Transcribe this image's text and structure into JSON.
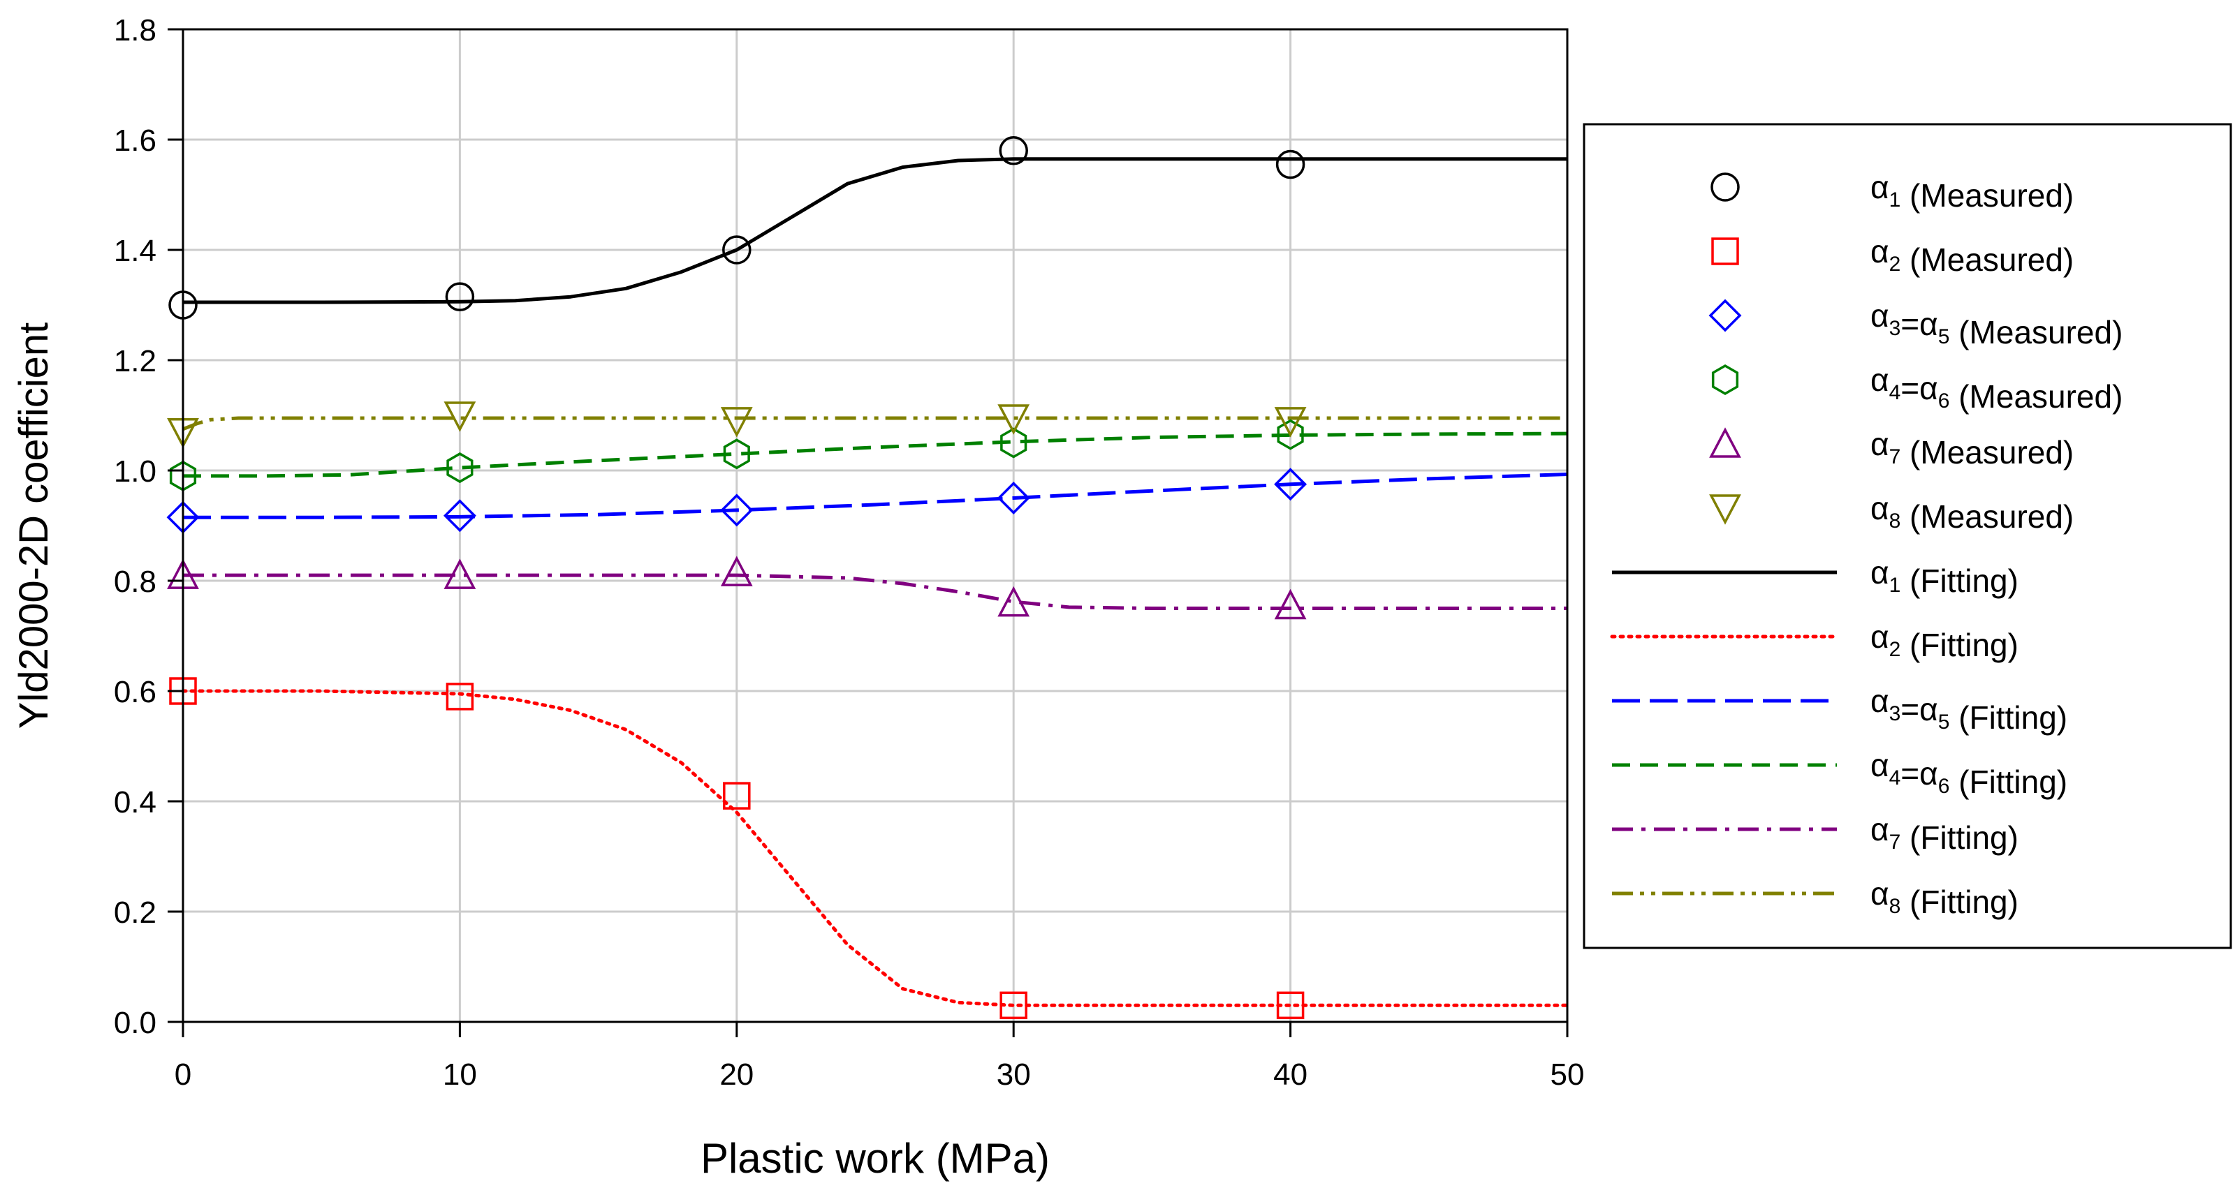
{
  "chart_data": {
    "type": "line",
    "title": "",
    "xlabel": "Plastic work (MPa)",
    "ylabel": "Yld2000-2D coefficient",
    "xlim": [
      0,
      50
    ],
    "ylim": [
      0,
      1.8
    ],
    "xticks": [
      0,
      10,
      20,
      30,
      40,
      50
    ],
    "yticks": [
      0.0,
      0.2,
      0.4,
      0.6,
      0.8,
      1.0,
      1.2,
      1.4,
      1.6,
      1.8
    ],
    "ytick_labels": [
      "0.0",
      "0.2",
      "0.4",
      "0.6",
      "0.8",
      "1.0",
      "1.2",
      "1.4",
      "1.6",
      "1.8"
    ],
    "xtick_labels": [
      "0",
      "10",
      "20",
      "30",
      "40",
      "50"
    ],
    "grid": true,
    "legend_position": "right",
    "measured": [
      {
        "name": "α1 (Measured)",
        "sym": "α",
        "sub": "1",
        "rest": " (Measured)",
        "marker": "circle",
        "color": "#000000",
        "x": [
          0,
          10,
          20,
          30,
          40
        ],
        "y": [
          1.3,
          1.315,
          1.4,
          1.58,
          1.555
        ]
      },
      {
        "name": "α2 (Measured)",
        "sym": "α",
        "sub": "2",
        "rest": " (Measured)",
        "marker": "square",
        "color": "#ff0000",
        "x": [
          0,
          10,
          20,
          30,
          40
        ],
        "y": [
          0.6,
          0.59,
          0.41,
          0.03,
          0.03
        ]
      },
      {
        "name": "α3=α5 (Measured)",
        "sym": "α",
        "sub": "3",
        "mid": "=α",
        "sub2": "5",
        "rest": " (Measured)",
        "marker": "diamond",
        "color": "#0000ff",
        "x": [
          0,
          10,
          20,
          30,
          40
        ],
        "y": [
          0.915,
          0.918,
          0.928,
          0.95,
          0.975
        ]
      },
      {
        "name": "α4=α6 (Measured)",
        "sym": "α",
        "sub": "4",
        "mid": "=α",
        "sub2": "6",
        "rest": " (Measured)",
        "marker": "hexagon",
        "color": "#008000",
        "x": [
          0,
          10,
          20,
          30,
          40
        ],
        "y": [
          0.99,
          1.005,
          1.03,
          1.05,
          1.065
        ]
      },
      {
        "name": "α7 (Measured)",
        "sym": "α",
        "sub": "7",
        "rest": " (Measured)",
        "marker": "triangle-up",
        "color": "#800080",
        "x": [
          0,
          10,
          20,
          30,
          40
        ],
        "y": [
          0.81,
          0.81,
          0.815,
          0.76,
          0.755
        ]
      },
      {
        "name": "α8 (Measured)",
        "sym": "α",
        "sub": "8",
        "rest": " (Measured)",
        "marker": "triangle-down",
        "color": "#808000",
        "x": [
          0,
          10,
          20,
          30,
          40
        ],
        "y": [
          1.07,
          1.1,
          1.09,
          1.095,
          1.09
        ]
      }
    ],
    "fitting": [
      {
        "name": "α1 (Fitting)",
        "sym": "α",
        "sub": "1",
        "rest": " (Fitting)",
        "dash": "solid",
        "color": "#000000",
        "x": [
          0,
          5,
          10,
          12,
          14,
          16,
          18,
          20,
          22,
          24,
          26,
          28,
          30,
          35,
          40,
          45,
          50
        ],
        "y": [
          1.305,
          1.305,
          1.306,
          1.308,
          1.315,
          1.33,
          1.36,
          1.4,
          1.46,
          1.52,
          1.55,
          1.562,
          1.565,
          1.565,
          1.565,
          1.565,
          1.565
        ]
      },
      {
        "name": "α2 (Fitting)",
        "sym": "α",
        "sub": "2",
        "rest": " (Fitting)",
        "dash": "dotted",
        "color": "#ff0000",
        "x": [
          0,
          5,
          10,
          12,
          14,
          16,
          18,
          20,
          22,
          24,
          26,
          28,
          30,
          35,
          40,
          45,
          50
        ],
        "y": [
          0.6,
          0.6,
          0.595,
          0.585,
          0.565,
          0.53,
          0.47,
          0.38,
          0.26,
          0.14,
          0.06,
          0.035,
          0.03,
          0.03,
          0.03,
          0.03,
          0.03
        ]
      },
      {
        "name": "α3=α5 (Fitting)",
        "sym": "α",
        "sub": "3",
        "mid": "=α",
        "sub2": "5",
        "rest": " (Fitting)",
        "dash": "longdash",
        "color": "#0000ff",
        "x": [
          0,
          5,
          10,
          15,
          20,
          25,
          30,
          35,
          40,
          45,
          50
        ],
        "y": [
          0.915,
          0.915,
          0.916,
          0.92,
          0.928,
          0.938,
          0.95,
          0.963,
          0.975,
          0.985,
          0.993
        ]
      },
      {
        "name": "α4=α6 (Fitting)",
        "sym": "α",
        "sub": "4",
        "mid": "=α",
        "sub2": "6",
        "rest": " (Fitting)",
        "dash": "dash",
        "color": "#008000",
        "x": [
          0,
          3,
          6,
          10,
          15,
          20,
          25,
          30,
          35,
          40,
          45,
          50
        ],
        "y": [
          0.99,
          0.99,
          0.992,
          1.005,
          1.018,
          1.03,
          1.042,
          1.052,
          1.06,
          1.064,
          1.066,
          1.067
        ]
      },
      {
        "name": "α7 (Fitting)",
        "sym": "α",
        "sub": "7",
        "rest": " (Fitting)",
        "dash": "dashdot",
        "color": "#800080",
        "x": [
          0,
          10,
          20,
          24,
          26,
          28,
          30,
          32,
          35,
          40,
          45,
          50
        ],
        "y": [
          0.81,
          0.81,
          0.81,
          0.805,
          0.795,
          0.78,
          0.762,
          0.752,
          0.75,
          0.75,
          0.75,
          0.75
        ]
      },
      {
        "name": "α8 (Fitting)",
        "sym": "α",
        "sub": "8",
        "rest": " (Fitting)",
        "dash": "dashdotdot",
        "color": "#808000",
        "x": [
          0,
          0.5,
          1,
          2,
          5,
          10,
          20,
          30,
          40,
          50
        ],
        "y": [
          1.075,
          1.085,
          1.092,
          1.095,
          1.095,
          1.095,
          1.095,
          1.095,
          1.095,
          1.095
        ]
      }
    ]
  }
}
